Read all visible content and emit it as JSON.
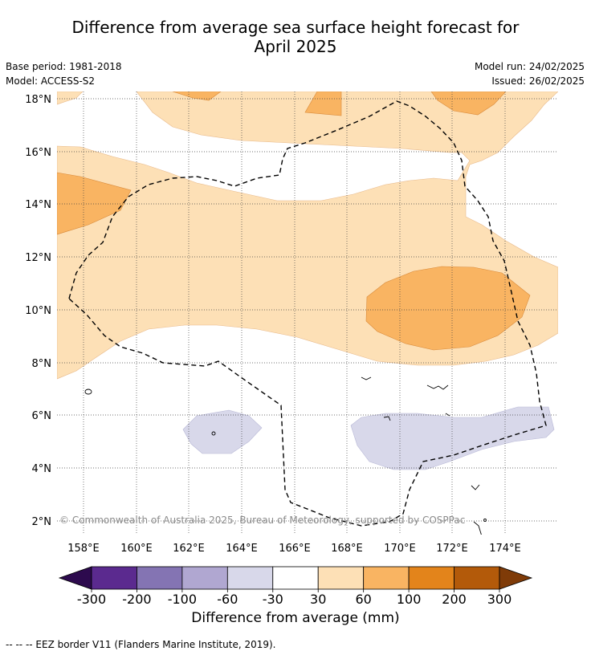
{
  "title_line1": "Difference from average sea surface height forecast for",
  "title_line2": "April 2025",
  "meta": {
    "base_period": "Base period: 1981-2018",
    "model": "Model: ACCESS-S2",
    "model_run": "Model run: 24/02/2025",
    "issued": "Issued: 26/02/2025"
  },
  "copyright": "© Commonwealth of Australia 2025, Bureau of Meteorology, supported by COSPPac",
  "lat_labels": [
    "18°N",
    "16°N",
    "14°N",
    "12°N",
    "10°N",
    "8°N",
    "6°N",
    "4°N",
    "2°N"
  ],
  "lon_labels": [
    "158°E",
    "160°E",
    "162°E",
    "164°E",
    "166°E",
    "168°E",
    "170°E",
    "172°E",
    "174°E"
  ],
  "colorbar": {
    "label": "Difference from average (mm)",
    "ticks": [
      "-300",
      "-200",
      "-100",
      "-60",
      "-30",
      "30",
      "60",
      "100",
      "200",
      "300"
    ],
    "colors": [
      "#2d0a4e",
      "#5b2a8f",
      "#8474b3",
      "#b0a7d1",
      "#d8d8ea",
      "#ffffff",
      "#fde0b6",
      "#f9b462",
      "#e3841b",
      "#b35a0a",
      "#7f3b08"
    ]
  },
  "footer": "--  --  -- EEZ border V11 (Flanders Marine Institute, 2019).",
  "colors": {
    "light_orange": "#fde0b6",
    "orange": "#f9b462",
    "light_purple": "#d8d8ea"
  }
}
